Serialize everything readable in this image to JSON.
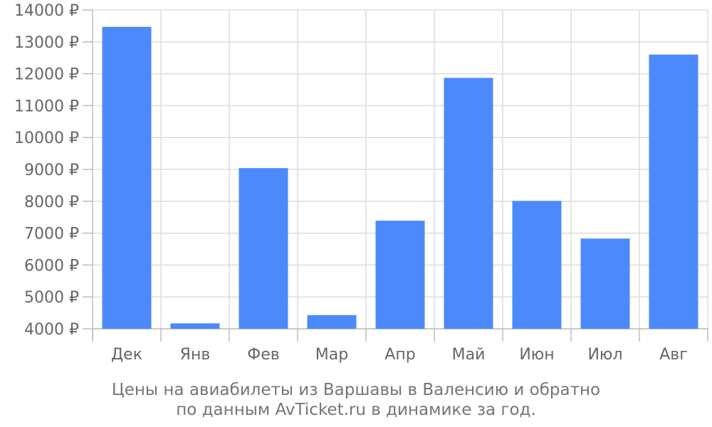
{
  "chart_data": {
    "type": "bar",
    "categories": [
      "Дек",
      "Янв",
      "Фев",
      "Мар",
      "Апр",
      "Май",
      "Июн",
      "Июл",
      "Авг"
    ],
    "series": [
      {
        "values": [
          13470,
          4170,
          9040,
          4430,
          7390,
          11870,
          8010,
          6830,
          12600
        ]
      }
    ],
    "y_ticks": [
      "4000 ₽",
      "5000 ₽",
      "6000 ₽",
      "7000 ₽",
      "8000 ₽",
      "9000 ₽",
      "10000 ₽",
      "11000 ₽",
      "12000 ₽",
      "13000 ₽",
      "14000 ₽"
    ],
    "ylim": [
      4000,
      14000
    ],
    "ystep": 1000,
    "grid": true,
    "bar_color": "#4c8afb",
    "grid_color": "#dddddd",
    "axis_color": "#bdbdbd",
    "label_color": "#666666",
    "caption_lines": [
      "Цены на авиабилеты из Варшавы в Валенсию и обратно",
      "по данным AvTicket.ru в динамике за год."
    ]
  }
}
